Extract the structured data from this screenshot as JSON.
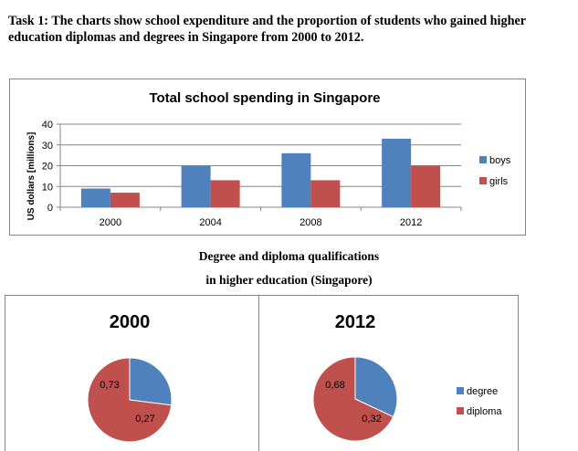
{
  "task_text": "Task 1: The charts show school expenditure and the proportion of students who gained higher education diplomas and degrees in Singapore from 2000 to 2012.",
  "section_heading": {
    "line1": "Degree and diploma qualifications",
    "line2": "in higher education (Singapore)"
  },
  "colors": {
    "blue": "#4F81BD",
    "red": "#C0504D",
    "frame": "#868686",
    "grid": "#868686"
  },
  "chart_data": [
    {
      "type": "bar",
      "title": "Total school spending in Singapore",
      "ylabel": "US dollars [millions]",
      "xlabel": "",
      "categories": [
        "2000",
        "2004",
        "2008",
        "2012"
      ],
      "series": [
        {
          "name": "boys",
          "values": [
            9,
            20,
            26,
            33
          ]
        },
        {
          "name": "girls",
          "values": [
            7,
            13,
            13,
            20
          ]
        }
      ],
      "ylim": [
        0,
        40
      ],
      "yticks": [
        0,
        10,
        20,
        30,
        40
      ],
      "grid": true,
      "legend": "right"
    },
    {
      "type": "pie",
      "title": "2000",
      "slices": [
        {
          "name": "degree",
          "value": 0.27,
          "label": "0,27"
        },
        {
          "name": "diploma",
          "value": 0.73,
          "label": "0,73"
        }
      ]
    },
    {
      "type": "pie",
      "title": "2012",
      "slices": [
        {
          "name": "degree",
          "value": 0.32,
          "label": "0,32"
        },
        {
          "name": "diploma",
          "value": 0.68,
          "label": "0,68"
        }
      ],
      "legend": [
        "degree",
        "diploma"
      ]
    }
  ]
}
